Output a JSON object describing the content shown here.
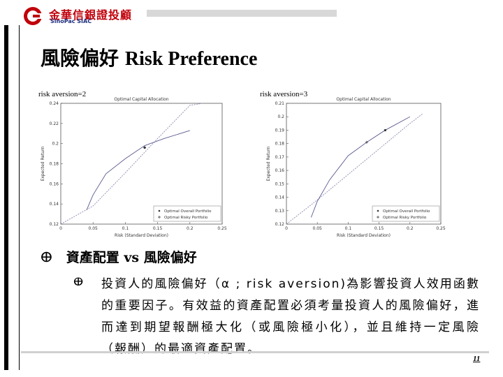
{
  "header": {
    "logo_text_zh": "金華信銀證投顧",
    "logo_text_en": "SinoPac SIAC",
    "logo_icon": "sinopac-logo-icon"
  },
  "slide": {
    "title_zh": "風險偏好",
    "title_en": "Risk Preference",
    "page_number": "11"
  },
  "charts": [
    {
      "label": "risk aversion=2",
      "title": "Optimal Capital Allocation",
      "xlabel": "Risk (Standard Deviation)",
      "ylabel": "Expected Return",
      "xticks": [
        "0",
        "0.05",
        "0.1",
        "0.15",
        "0.2",
        "0.25"
      ],
      "yticks": [
        "0.12",
        "0.14",
        "0.16",
        "0.18",
        "0.2",
        "0.22",
        "0.24"
      ],
      "legend": [
        "Optimal Overall Portfolio",
        "Optimal Risky Portfolio"
      ]
    },
    {
      "label": "risk aversion=3",
      "title": "Optimal Capital Allocation",
      "xlabel": "Risk (Standard Deviation)",
      "ylabel": "Expected Return",
      "xticks": [
        "0",
        "0.05",
        "0.1",
        "0.15",
        "0.2",
        "0.25"
      ],
      "yticks": [
        "0.12",
        "0.13",
        "0.14",
        "0.15",
        "0.16",
        "0.17",
        "0.18",
        "0.19",
        "0.2",
        "0.21"
      ],
      "legend": [
        "Optimal Overall Portfolio",
        "Optimal Risky Portfolio"
      ]
    }
  ],
  "chart_data": [
    {
      "type": "line",
      "title": "Optimal Capital Allocation",
      "xlabel": "Risk (Standard Deviation)",
      "ylabel": "Expected Return",
      "xlim": [
        0,
        0.25
      ],
      "ylim": [
        0.12,
        0.24
      ],
      "series": [
        {
          "name": "",
          "style": "dotted",
          "x": [
            0.0,
            0.05,
            0.1,
            0.15,
            0.2,
            0.22
          ],
          "y": [
            0.12,
            0.138,
            0.171,
            0.205,
            0.238,
            0.24
          ]
        },
        {
          "name": "",
          "style": "frontier",
          "x": [
            0.04,
            0.05,
            0.07,
            0.1,
            0.13,
            0.16,
            0.2
          ],
          "y": [
            0.134,
            0.149,
            0.17,
            0.185,
            0.198,
            0.205,
            0.213
          ]
        }
      ],
      "points": [
        {
          "name": "Optimal Overall Portfolio",
          "x": 0.13,
          "y": 0.196
        },
        {
          "name": "Optimal Risky Portfolio",
          "x": 0.13,
          "y": 0.196
        }
      ]
    },
    {
      "type": "line",
      "title": "Optimal Capital Allocation",
      "xlabel": "Risk (Standard Deviation)",
      "ylabel": "Expected Return",
      "xlim": [
        0,
        0.25
      ],
      "ylim": [
        0.12,
        0.21
      ],
      "series": [
        {
          "name": "",
          "style": "dotted",
          "x": [
            0.0,
            0.05,
            0.1,
            0.15,
            0.2,
            0.22
          ],
          "y": [
            0.12,
            0.138,
            0.157,
            0.176,
            0.195,
            0.202
          ]
        },
        {
          "name": "",
          "style": "frontier",
          "x": [
            0.04,
            0.05,
            0.07,
            0.1,
            0.13,
            0.16,
            0.2
          ],
          "y": [
            0.125,
            0.137,
            0.153,
            0.171,
            0.181,
            0.19,
            0.2
          ]
        }
      ],
      "points": [
        {
          "name": "Optimal Overall Portfolio",
          "x": 0.16,
          "y": 0.19
        },
        {
          "name": "Optimal Risky Portfolio",
          "x": 0.13,
          "y": 0.181
        }
      ]
    }
  ],
  "bullets": {
    "level1_mark": "ⴲ",
    "level1_text": "資產配置 vs 風險偏好",
    "level2_mark": "ⴲ",
    "level2_text": "投資人的風險偏好（α ; risk aversion)為影響投資人效用函數的重要因子。有效益的資產配置必須考量投資人的風險偏好，進而達到期望報酬極大化（或風險極小化），並且維持一定風險（報酬）的最適資產配置。"
  }
}
